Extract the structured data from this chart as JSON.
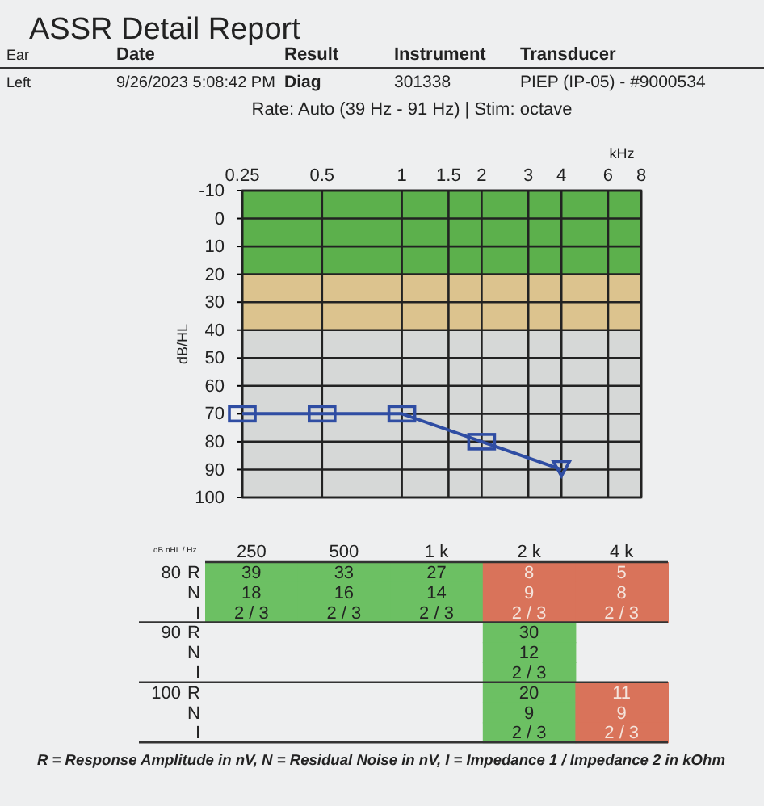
{
  "chart_data": [
    {
      "type": "other",
      "title": "ASSR Detail Report",
      "subtitle": "Rate: Auto (39 Hz - 91 Hz) | Stim: octave",
      "categories": [
        "Ear",
        "Date",
        "Result",
        "Instrument",
        "Transducer"
      ],
      "cell_labels": [
        [
          "Left",
          "9/26/2023 5:08:42 PM",
          "Diag",
          "301338",
          "PIEP (IP-05) - #9000534"
        ]
      ]
    },
    {
      "type": "line",
      "xlabel": "kHz",
      "ylabel": "dB/HL",
      "log": "x",
      "xlim": [
        0.25,
        8
      ],
      "xticks": [
        0.25,
        0.5,
        1,
        1.5,
        2,
        3,
        4,
        6,
        8
      ],
      "ylim": [
        100,
        -10
      ],
      "yticks": [
        -10,
        0,
        10,
        20,
        30,
        40,
        50,
        60,
        70,
        80,
        90,
        100
      ],
      "grid": true,
      "bands": [
        {
          "axis": "y",
          "from": -10,
          "to": 20,
          "color": "#5cb04c"
        },
        {
          "axis": "y",
          "from": 20,
          "to": 40,
          "color": "#dcc38e"
        },
        {
          "axis": "y",
          "from": 40,
          "to": 100,
          "color": "#d6d8d7"
        }
      ],
      "series": [
        {
          "type": "line",
          "color": "#2f4da3",
          "x": [
            0.25,
            0.5,
            1,
            2,
            4
          ],
          "values": [
            70,
            70,
            70,
            80,
            90
          ],
          "marker": "none"
        },
        {
          "type": "scatter",
          "color": "#2f4da3",
          "x": [
            0.25,
            0.5,
            1,
            2
          ],
          "values": [
            70,
            70,
            70,
            80
          ],
          "marker": "square"
        },
        {
          "type": "scatter",
          "color": "#2f4da3",
          "x": [
            4
          ],
          "values": [
            90
          ],
          "marker": "triangle"
        }
      ]
    },
    {
      "type": "other",
      "xlabel": "dB nHL / Hz",
      "categories": [
        "250",
        "500",
        "1 k",
        "2 k",
        "4 k"
      ],
      "y_categories": [
        "80",
        null,
        null,
        "90",
        null,
        null,
        "100",
        null,
        null
      ],
      "y2_categories": [
        "R",
        "N",
        "I",
        "R",
        "N",
        "I",
        "R",
        "N",
        "I"
      ],
      "cell_labels": [
        [
          "39",
          "33",
          "27",
          "8",
          "5"
        ],
        [
          "18",
          "16",
          "14",
          "9",
          "8"
        ],
        [
          "2 / 3",
          "2 / 3",
          "2 / 3",
          "2 / 3",
          "2 / 3"
        ],
        [
          null,
          null,
          null,
          "30",
          null
        ],
        [
          null,
          null,
          null,
          "12",
          null
        ],
        [
          null,
          null,
          null,
          "2 / 3",
          null
        ],
        [
          null,
          null,
          null,
          "20",
          "11"
        ],
        [
          null,
          null,
          null,
          "9",
          "9"
        ],
        [
          null,
          null,
          null,
          "2 / 3",
          "2 / 3"
        ]
      ],
      "colors": [
        [
          "#6cc063",
          "#6cc063",
          "#6cc063",
          "#d9735a",
          "#d9735a"
        ],
        [
          "#6cc063",
          "#6cc063",
          "#6cc063",
          "#d9735a",
          "#d9735a"
        ],
        [
          "#6cc063",
          "#6cc063",
          "#6cc063",
          "#d9735a",
          "#d9735a"
        ],
        [
          null,
          null,
          null,
          "#6cc063",
          null
        ],
        [
          null,
          null,
          null,
          "#6cc063",
          null
        ],
        [
          null,
          null,
          null,
          "#6cc063",
          null
        ],
        [
          null,
          null,
          null,
          "#6cc063",
          "#d9735a"
        ],
        [
          null,
          null,
          null,
          "#6cc063",
          "#d9735a"
        ],
        [
          null,
          null,
          null,
          "#6cc063",
          "#d9735a"
        ]
      ],
      "annotations": [
        "R = Response Amplitude in nV, N = Residual Noise in nV, I = Impedance 1 / Impedance 2 in kOhm"
      ]
    }
  ]
}
